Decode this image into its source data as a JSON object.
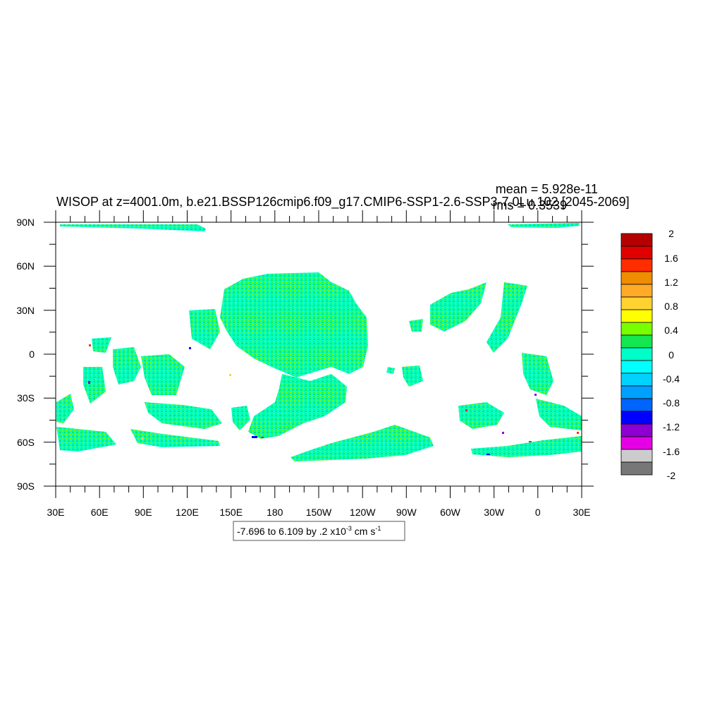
{
  "title": "WISOP at z=4001.0m, b.e21.BSSP126cmip6.f09_g17.CMIP6-SSP1-2.6-SSP3-7.0Lu.102 [2045-2069]",
  "stats": {
    "mean": "mean = 5.928e-11",
    "rms": "rms = 0.3539"
  },
  "axes": {
    "lat_labels": [
      "90N",
      "60N",
      "30N",
      "0",
      "30S",
      "60S",
      "90S"
    ],
    "lon_labels": [
      "30E",
      "60E",
      "90E",
      "120E",
      "150E",
      "180",
      "150W",
      "120W",
      "90W",
      "60W",
      "30W",
      "0",
      "30E"
    ]
  },
  "contour_info": {
    "text": "-7.696 to 6.109 by .2 x10",
    "exponent": "-3",
    "units": " cm s",
    "units_exponent": "-1"
  },
  "colorbar": {
    "colors": [
      "#b40000",
      "#e00000",
      "#ff2d00",
      "#f08c00",
      "#ffaa28",
      "#ffd232",
      "#ffff00",
      "#78ff00",
      "#14e650",
      "#00ffc8",
      "#00ffff",
      "#00d2ff",
      "#00a0ff",
      "#0064ff",
      "#0000ff",
      "#8c00d2",
      "#e600e6",
      "#cccccc",
      "#777777"
    ],
    "labels": [
      "2",
      "1.6",
      "1.2",
      "0.8",
      "0.4",
      "0",
      "-0.4",
      "-0.8",
      "-1.2",
      "-1.6",
      "-2"
    ]
  },
  "field": {
    "dominant_colors": [
      "#00ffc8",
      "#14e650",
      "#78ff00",
      "#00ffff"
    ],
    "extreme_colors": [
      "#ff2d00",
      "#0000ff",
      "#8c00d2",
      "#ffd232"
    ]
  }
}
